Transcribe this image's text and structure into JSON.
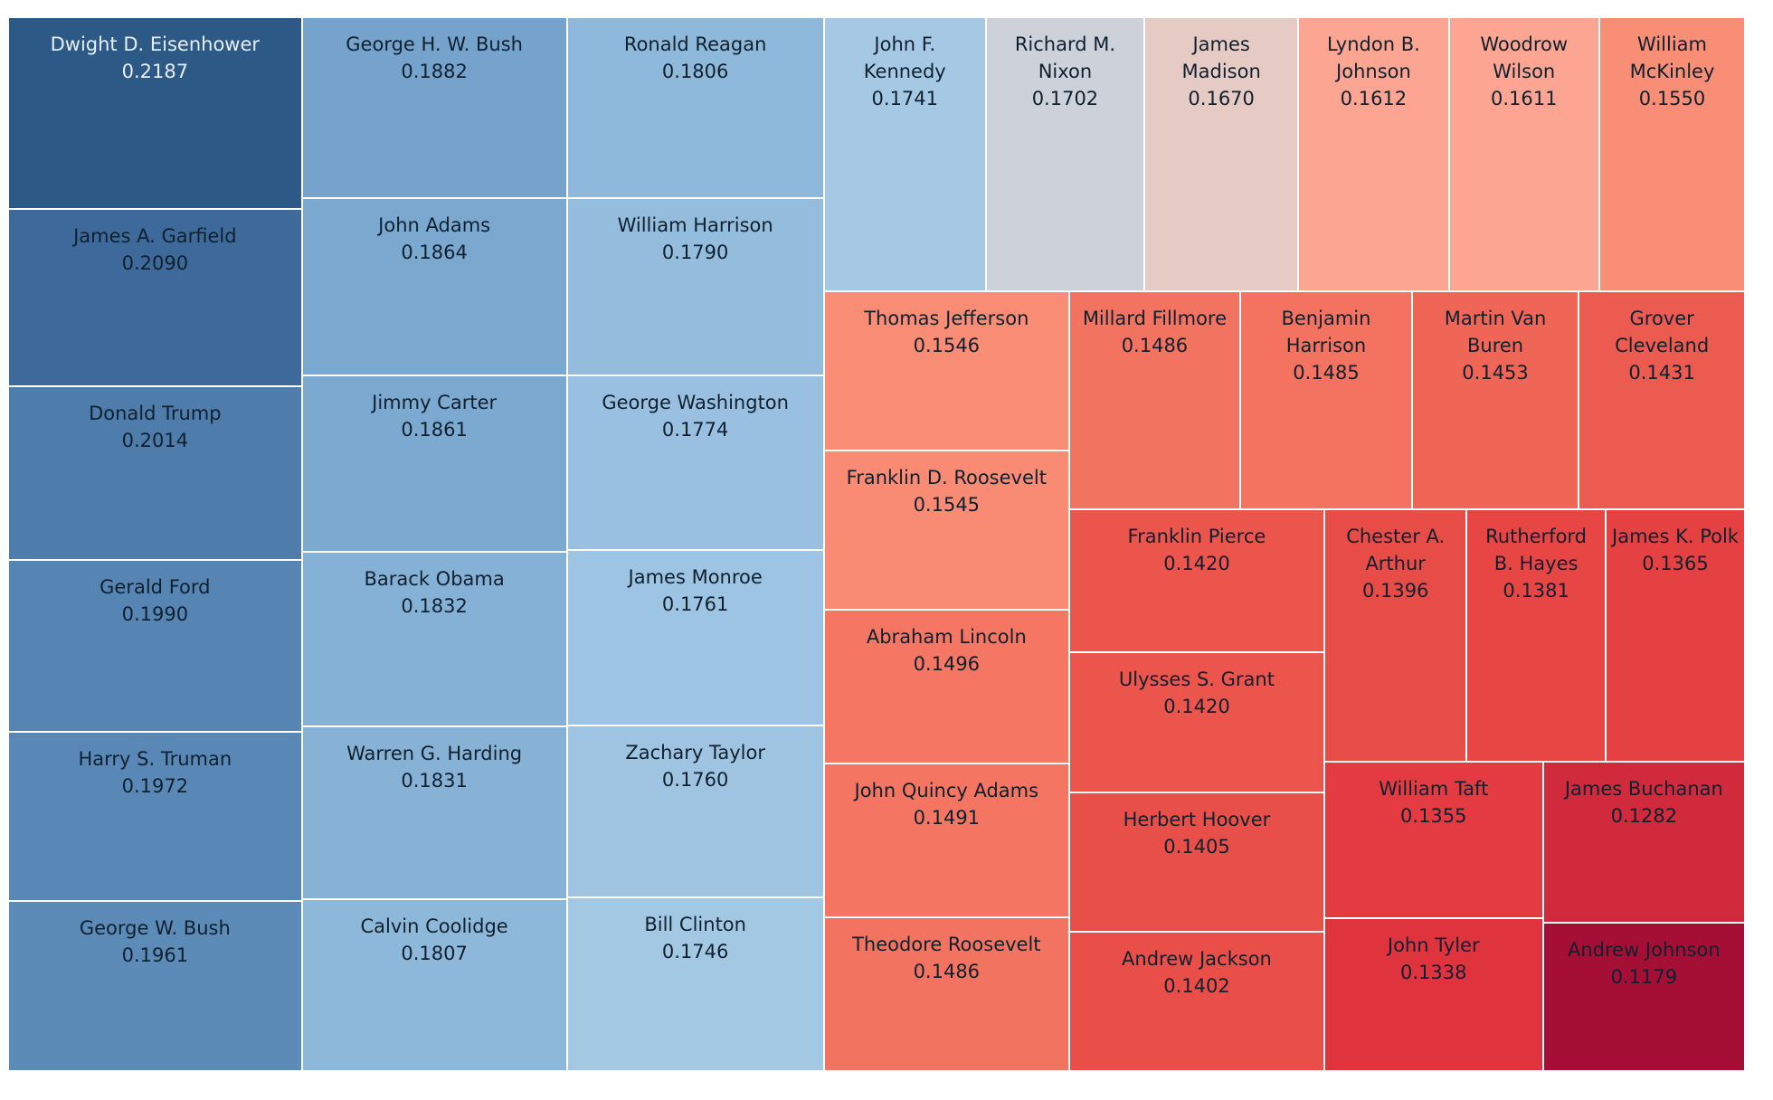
{
  "chart_data": {
    "type": "treemap",
    "color_scale": {
      "low": "#a50f36",
      "mid": "#dcdcdc",
      "high": "#2a5783"
    },
    "items": [
      {
        "name": "Dwight D. Eisenhower",
        "value": 0.2187,
        "label": "0.2187",
        "color": "#2c5985",
        "text_color": "#e8eef5"
      },
      {
        "name": "James A. Garfield",
        "value": 0.209,
        "label": "0.2090",
        "color": "#3d6a9a",
        "text_color": "#10202f"
      },
      {
        "name": "Donald Trump",
        "value": 0.2014,
        "label": "0.2014",
        "color": "#4e7cab",
        "text_color": "#10202f"
      },
      {
        "name": "Gerald Ford",
        "value": 0.199,
        "label": "0.1990",
        "color": "#5684b3",
        "text_color": "#10202f"
      },
      {
        "name": "Harry S. Truman",
        "value": 0.1972,
        "label": "0.1972",
        "color": "#5988b6",
        "text_color": "#10202f"
      },
      {
        "name": "George W. Bush",
        "value": 0.1961,
        "label": "0.1961",
        "color": "#5c8bb8",
        "text_color": "#10202f"
      },
      {
        "name": "George H. W. Bush",
        "value": 0.1882,
        "label": "0.1882",
        "color": "#75a3cb",
        "text_color": "#10202f"
      },
      {
        "name": "John Adams",
        "value": 0.1864,
        "label": "0.1864",
        "color": "#7aa8cf",
        "text_color": "#10202f"
      },
      {
        "name": "Jimmy Carter",
        "value": 0.1861,
        "label": "0.1861",
        "color": "#7ca9d0",
        "text_color": "#10202f"
      },
      {
        "name": "Barack Obama",
        "value": 0.1832,
        "label": "0.1832",
        "color": "#86b1d6",
        "text_color": "#10202f"
      },
      {
        "name": "Warren G. Harding",
        "value": 0.1831,
        "label": "0.1831",
        "color": "#87b2d6",
        "text_color": "#10202f"
      },
      {
        "name": "Calvin Coolidge",
        "value": 0.1807,
        "label": "0.1807",
        "color": "#8eb8da",
        "text_color": "#10202f"
      },
      {
        "name": "Ronald Reagan",
        "value": 0.1806,
        "label": "0.1806",
        "color": "#8fb9db",
        "text_color": "#10202f"
      },
      {
        "name": "William Harrison",
        "value": 0.179,
        "label": "0.1790",
        "color": "#94bddd",
        "text_color": "#10202f"
      },
      {
        "name": "George Washington",
        "value": 0.1774,
        "label": "0.1774",
        "color": "#99c0e0",
        "text_color": "#10202f"
      },
      {
        "name": "James Monroe",
        "value": 0.1761,
        "label": "0.1761",
        "color": "#9dc4e2",
        "text_color": "#10202f"
      },
      {
        "name": "Zachary Taylor",
        "value": 0.176,
        "label": "0.1760",
        "color": "#9ec4e2",
        "text_color": "#10202f"
      },
      {
        "name": "Bill Clinton",
        "value": 0.1746,
        "label": "0.1746",
        "color": "#a3c8e4",
        "text_color": "#10202f"
      },
      {
        "name": "John F. Kennedy",
        "value": 0.1741,
        "label": "0.1741",
        "color": "#a5c9e5",
        "text_color": "#10202f"
      },
      {
        "name": "Richard M. Nixon",
        "value": 0.1702,
        "label": "0.1702",
        "color": "#ccd1da",
        "text_color": "#10202f"
      },
      {
        "name": "James Madison",
        "value": 0.167,
        "label": "0.1670",
        "color": "#e6cbc5",
        "text_color": "#10202f"
      },
      {
        "name": "Lyndon B. Johnson",
        "value": 0.1612,
        "label": "0.1612",
        "color": "#fca592",
        "text_color": "#10202f"
      },
      {
        "name": "Woodrow Wilson",
        "value": 0.1611,
        "label": "0.1611",
        "color": "#fca592",
        "text_color": "#10202f"
      },
      {
        "name": "William McKinley",
        "value": 0.155,
        "label": "0.1550",
        "color": "#f98e77",
        "text_color": "#10202f"
      },
      {
        "name": "Thomas Jefferson",
        "value": 0.1546,
        "label": "0.1546",
        "color": "#f98c75",
        "text_color": "#10202f"
      },
      {
        "name": "Franklin D. Roosevelt",
        "value": 0.1545,
        "label": "0.1545",
        "color": "#f98b74",
        "text_color": "#10202f"
      },
      {
        "name": "Abraham Lincoln",
        "value": 0.1496,
        "label": "0.1496",
        "color": "#f47663",
        "text_color": "#10202f"
      },
      {
        "name": "John Quincy Adams",
        "value": 0.1491,
        "label": "0.1491",
        "color": "#f47562",
        "text_color": "#10202f"
      },
      {
        "name": "Theodore Roosevelt",
        "value": 0.1486,
        "label": "0.1486",
        "color": "#f37361",
        "text_color": "#10202f"
      },
      {
        "name": "Millard Fillmore",
        "value": 0.1486,
        "label": "0.1486",
        "color": "#f37361",
        "text_color": "#10202f"
      },
      {
        "name": "Benjamin Harrison",
        "value": 0.1485,
        "label": "0.1485",
        "color": "#f37260",
        "text_color": "#10202f"
      },
      {
        "name": "Martin Van Buren",
        "value": 0.1453,
        "label": "0.1453",
        "color": "#ef6556",
        "text_color": "#10202f"
      },
      {
        "name": "Grover Cleveland",
        "value": 0.1431,
        "label": "0.1431",
        "color": "#ec5b50",
        "text_color": "#10202f"
      },
      {
        "name": "Franklin Pierce",
        "value": 0.142,
        "label": "0.1420",
        "color": "#eb554c",
        "text_color": "#10202f"
      },
      {
        "name": "Ulysses S. Grant",
        "value": 0.142,
        "label": "0.1420",
        "color": "#eb554c",
        "text_color": "#10202f"
      },
      {
        "name": "Herbert Hoover",
        "value": 0.1405,
        "label": "0.1405",
        "color": "#e94f49",
        "text_color": "#10202f"
      },
      {
        "name": "Andrew Jackson",
        "value": 0.1402,
        "label": "0.1402",
        "color": "#e94e48",
        "text_color": "#10202f"
      },
      {
        "name": "Chester A. Arthur",
        "value": 0.1396,
        "label": "0.1396",
        "color": "#e84c47",
        "text_color": "#10202f"
      },
      {
        "name": "Rutherford B. Hayes",
        "value": 0.1381,
        "label": "0.1381",
        "color": "#e74645",
        "text_color": "#10202f"
      },
      {
        "name": "James K. Polk",
        "value": 0.1365,
        "label": "0.1365",
        "color": "#e54042",
        "text_color": "#10202f"
      },
      {
        "name": "William Taft",
        "value": 0.1355,
        "label": "0.1355",
        "color": "#e33b41",
        "text_color": "#10202f"
      },
      {
        "name": "John Tyler",
        "value": 0.1338,
        "label": "0.1338",
        "color": "#df333e",
        "text_color": "#10202f"
      },
      {
        "name": "James Buchanan",
        "value": 0.1282,
        "label": "0.1282",
        "color": "#d12a3d",
        "text_color": "#10202f"
      },
      {
        "name": "Andrew Johnson",
        "value": 0.1179,
        "label": "0.1179",
        "color": "#a50f36",
        "text_color": "#10202f"
      }
    ]
  }
}
